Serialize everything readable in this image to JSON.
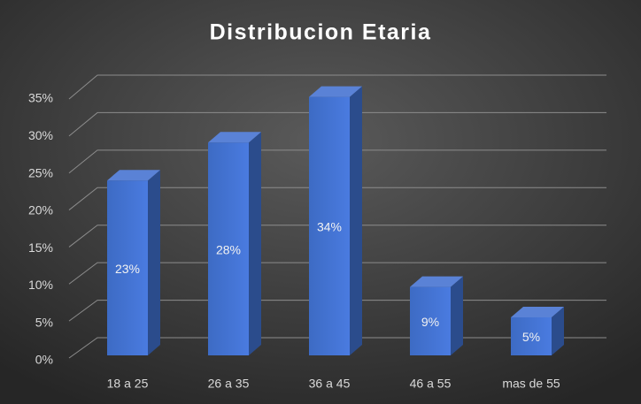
{
  "chart_data": {
    "type": "bar3d",
    "title": "Distribucion Etaria",
    "categories": [
      "18 a 25",
      "26 a 35",
      "36 a 45",
      "46 a 55",
      "mas de 55"
    ],
    "values": [
      23,
      28,
      34,
      9,
      5
    ],
    "value_labels": [
      "23%",
      "28%",
      "34%",
      "9%",
      "5%"
    ],
    "color": "#4472c4",
    "ylim": [
      0,
      35
    ],
    "yticks": [
      {
        "value": 0,
        "label": "0%"
      },
      {
        "value": 5,
        "label": "5%"
      },
      {
        "value": 10,
        "label": "10%"
      },
      {
        "value": 15,
        "label": "15%"
      },
      {
        "value": 20,
        "label": "20%"
      },
      {
        "value": 25,
        "label": "25%"
      },
      {
        "value": 30,
        "label": "30%"
      },
      {
        "value": 35,
        "label": "35%"
      }
    ],
    "grid": true
  }
}
